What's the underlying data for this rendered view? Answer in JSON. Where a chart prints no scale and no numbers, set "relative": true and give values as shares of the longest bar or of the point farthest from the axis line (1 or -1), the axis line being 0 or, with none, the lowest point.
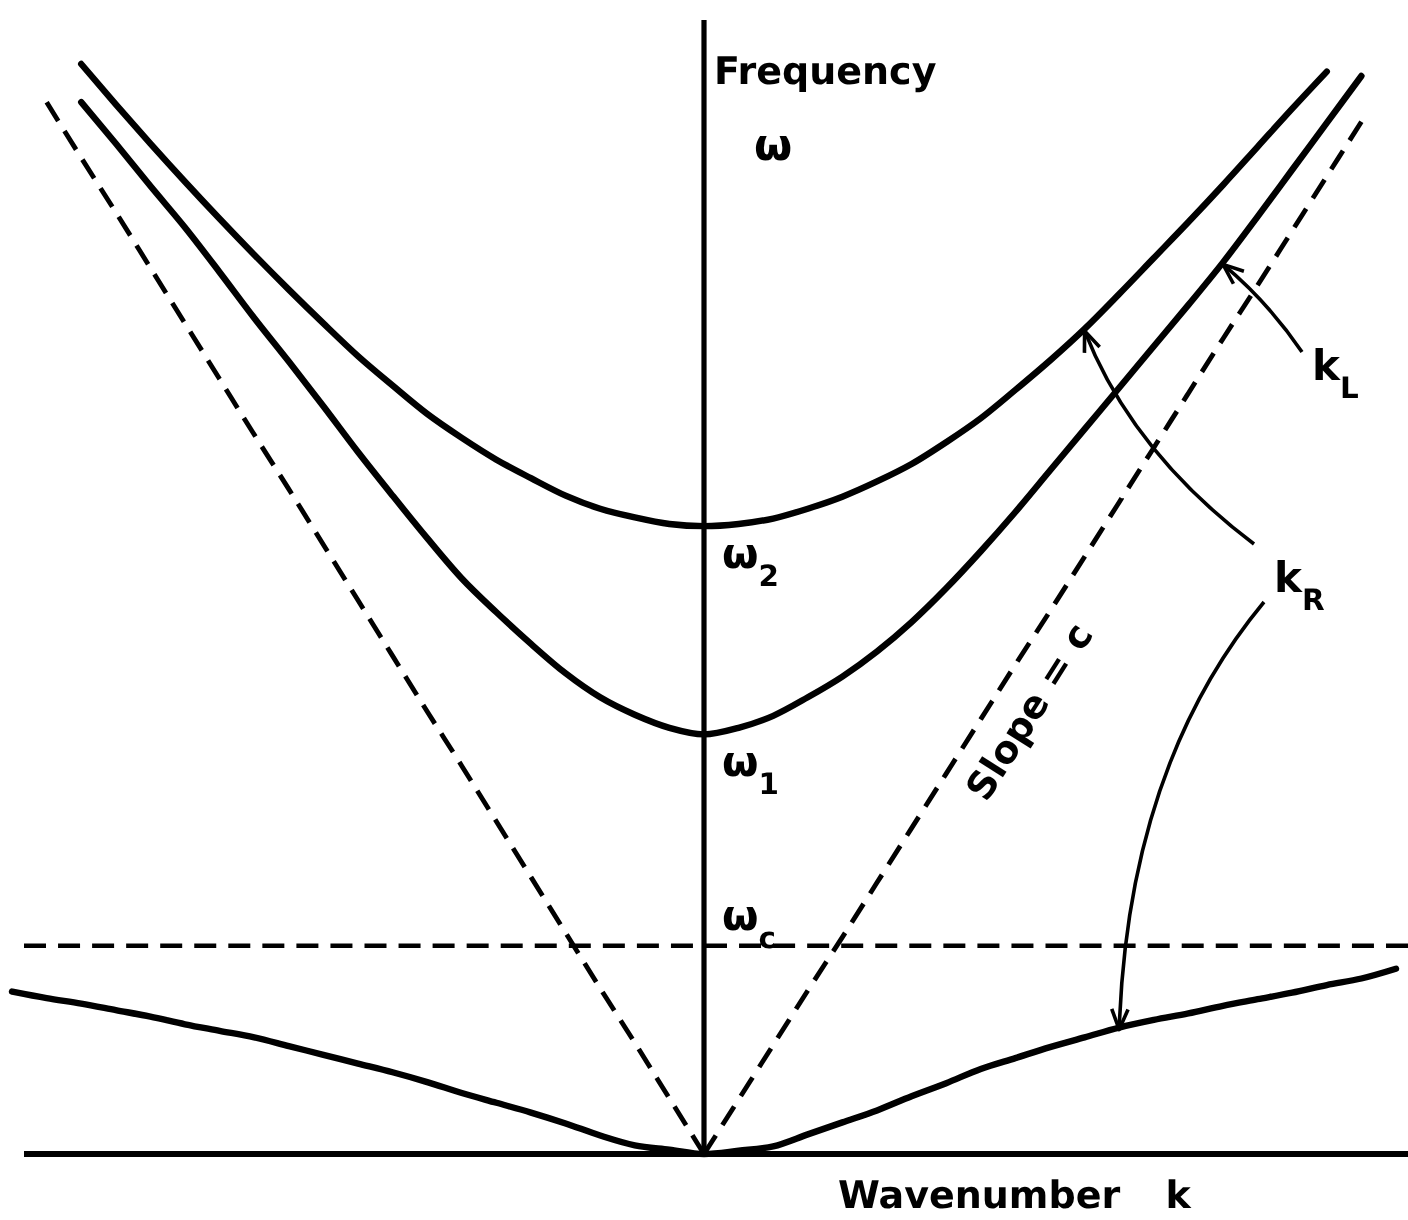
{
  "chart_data": {
    "type": "line",
    "relative": true,
    "xlabel": "Wavenumber k",
    "ylabel": "Frequency\nω",
    "line_style": "solid",
    "categories": [
      null,
      null,
      null,
      null,
      null,
      null,
      null,
      null,
      null,
      null,
      null,
      null,
      null,
      null,
      null,
      null,
      null,
      null,
      null,
      null,
      null,
      null,
      null,
      null,
      null,
      null,
      null,
      null,
      null,
      null,
      null,
      null,
      null,
      null,
      null,
      null,
      null,
      null,
      null,
      null,
      null
    ],
    "series": [
      {
        "color": "#000000",
        "values": [
          null,
          null,
          1,
          0.963,
          0.927,
          0.892,
          0.858,
          0.825,
          0.793,
          0.762,
          0.732,
          0.705,
          0.679,
          0.657,
          0.637,
          0.62,
          0.604,
          0.592,
          0.584,
          0.578,
          0.576,
          0.578,
          0.583,
          0.592,
          0.603,
          0.617,
          0.633,
          0.653,
          0.675,
          0.701,
          0.728,
          0.757,
          0.789,
          0.822,
          0.855,
          0.889,
          0.924,
          0.959,
          0.993,
          null,
          null
        ]
      },
      {
        "color": "#000000",
        "values": [
          null,
          null,
          0.965,
          0.927,
          0.888,
          0.85,
          0.809,
          0.767,
          0.727,
          0.686,
          0.644,
          0.604,
          0.565,
          0.528,
          0.497,
          0.468,
          0.441,
          0.419,
          0.403,
          0.391,
          0.385,
          0.391,
          0.402,
          0.419,
          0.438,
          0.461,
          0.488,
          0.519,
          0.553,
          0.589,
          0.627,
          0.665,
          0.703,
          0.741,
          0.779,
          0.818,
          0.86,
          0.903,
          0.946,
          0.989,
          null
        ]
      },
      {
        "color": "#000000",
        "values": [
          0.149,
          0.143,
          0.138,
          0.132,
          0.126,
          0.119,
          0.113,
          0.107,
          0.099,
          0.091,
          0.083,
          0.075,
          0.066,
          0.056,
          0.047,
          0.038,
          0.028,
          0.017,
          0.008,
          0.004,
          0,
          0.003,
          0.007,
          0.018,
          0.029,
          0.04,
          0.053,
          0.065,
          0.078,
          0.088,
          0.098,
          0.107,
          0.116,
          0.123,
          0.129,
          0.136,
          0.142,
          0.148,
          0.155,
          0.161,
          0.17
        ]
      },
      {
        "color": "#000000",
        "line_style": "dashed",
        "values": [
          null,
          0.965,
          0.914,
          0.864,
          0.813,
          0.762,
          0.711,
          0.66,
          0.61,
          0.559,
          0.508,
          0.457,
          0.406,
          0.356,
          0.305,
          0.254,
          0.203,
          0.152,
          0.102,
          0.051,
          0,
          null,
          null,
          null,
          null,
          null,
          null,
          null,
          null,
          null,
          null,
          null,
          null,
          null,
          null,
          null,
          null,
          null,
          null,
          null,
          null
        ]
      },
      {
        "color": "#000000",
        "line_style": "dashed",
        "values": [
          null,
          null,
          null,
          null,
          null,
          null,
          null,
          null,
          null,
          null,
          null,
          null,
          null,
          null,
          null,
          null,
          null,
          null,
          null,
          null,
          0,
          0.05,
          0.1,
          0.15,
          0.199,
          0.249,
          0.299,
          0.349,
          0.399,
          0.449,
          0.498,
          0.548,
          0.598,
          0.648,
          0.698,
          0.748,
          0.797,
          0.847,
          0.897,
          0.947,
          null
        ]
      }
    ],
    "ref_lines": [
      {
        "axis": "y",
        "value": 0.191,
        "label": "ω$_{c}$",
        "line_style": "dashed",
        "color": "#000000"
      }
    ],
    "annotations": [
      {
        "text": "ω$_{2}$",
        "y": 0.576
      },
      {
        "text": "ω$_{1}$",
        "y": 0.385
      },
      "Slope = c",
      "k$_{L}$",
      "k$_{R}$"
    ]
  }
}
